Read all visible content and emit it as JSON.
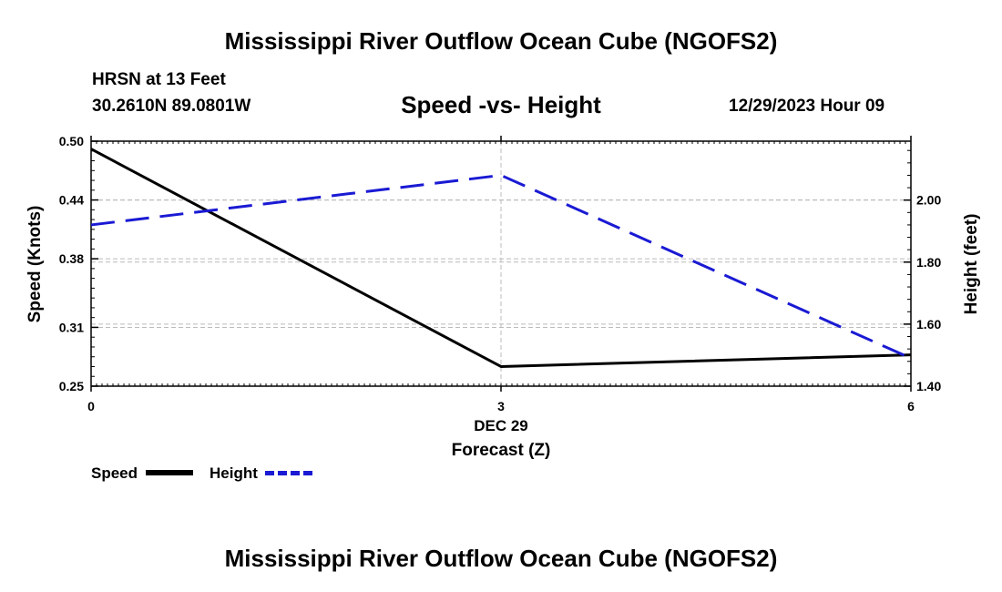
{
  "header": {
    "title": "Mississippi River Outflow Ocean Cube (NGOFS2)",
    "station": "HRSN at 13 Feet",
    "coordinates": "30.2610N  89.0801W",
    "subtitle": "Speed -vs- Height",
    "datetime": "12/29/2023 Hour 09"
  },
  "footer": {
    "title": "Mississippi River Outflow Ocean Cube (NGOFS2)"
  },
  "legend": {
    "speed_label": "Speed",
    "height_label": "Height"
  },
  "colors": {
    "speed": "#000000",
    "height": "#1a1ad4"
  },
  "chart_data": {
    "type": "line",
    "title": "Speed -vs- Height",
    "xlabel": "Forecast (Z)",
    "xlabel_date": "DEC 29",
    "ylabel_left": "Speed (Knots)",
    "ylabel_right": "Height (feet)",
    "x": [
      0,
      3,
      6
    ],
    "x_ticks": [
      0,
      3,
      6
    ],
    "xlim": [
      0,
      6
    ],
    "ylim_left": [
      0.25,
      0.5
    ],
    "ylim_right": [
      1.4,
      2.19
    ],
    "y_left_ticks": [
      "0.25",
      "0.31",
      "0.38",
      "0.44",
      "0.50"
    ],
    "y_right_ticks": [
      "1.40",
      "1.60",
      "1.80",
      "2.00"
    ],
    "series": [
      {
        "name": "Speed",
        "axis": "left",
        "style": "solid",
        "color": "#000000",
        "values": [
          0.492,
          0.27,
          0.282
        ]
      },
      {
        "name": "Height",
        "axis": "right",
        "style": "dashed",
        "color": "#1a1ad4",
        "values": [
          1.92,
          2.08,
          1.49
        ]
      }
    ],
    "grid": true,
    "legend_position": "bottom-left"
  }
}
